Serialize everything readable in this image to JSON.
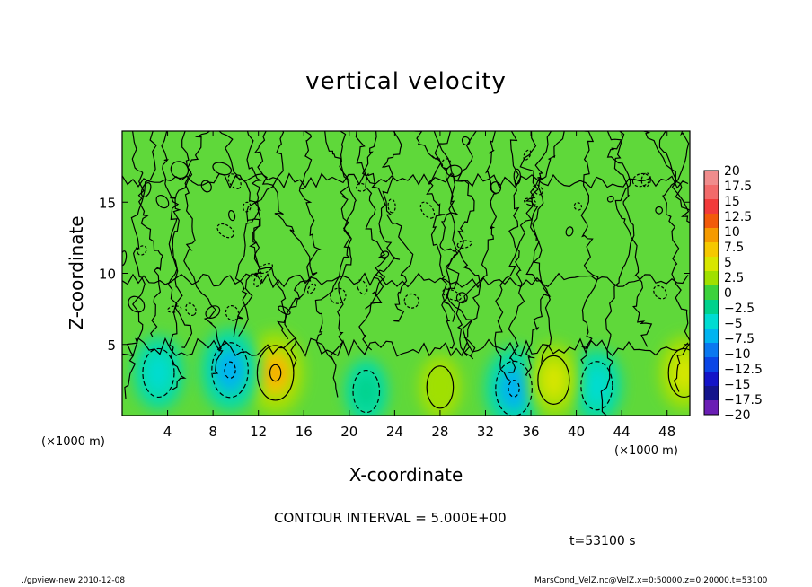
{
  "chart_data": {
    "type": "heatmap",
    "title": "vertical velocity",
    "xlabel": "X-coordinate",
    "ylabel": "Z-coordinate",
    "x_unit": "(×1000 m)",
    "y_unit": "(×1000 m)",
    "xlim": [
      0,
      50
    ],
    "ylim": [
      0,
      20
    ],
    "x_ticks": [
      4,
      8,
      12,
      16,
      20,
      24,
      28,
      32,
      36,
      40,
      44,
      48
    ],
    "y_ticks": [
      5,
      10,
      15
    ],
    "colorbar": {
      "levels": [
        "20",
        "17.5",
        "15",
        "12.5",
        "10",
        "7.5",
        "5",
        "2.5",
        "0",
        "−2.5",
        "−5",
        "−7.5",
        "−10",
        "−12.5",
        "−15",
        "−17.5",
        "−20"
      ],
      "colors": [
        "#f08c8c",
        "#f26a6a",
        "#f23a3a",
        "#f25a0a",
        "#f59a00",
        "#f5c800",
        "#d8e600",
        "#a0e000",
        "#3cd23c",
        "#00d28c",
        "#00dcd2",
        "#00b4f0",
        "#0a78f0",
        "#0a46e6",
        "#1414c8",
        "#14148c",
        "#6a1eb4"
      ]
    },
    "features": [
      {
        "x": 13.5,
        "z": 3.0,
        "sign": "positive",
        "peak": 7.5
      },
      {
        "x": 9.5,
        "z": 3.2,
        "sign": "negative",
        "peak": -7.5
      },
      {
        "x": 34.5,
        "z": 1.9,
        "sign": "negative",
        "peak": -7.5
      },
      {
        "x": 41.8,
        "z": 2.1,
        "sign": "negative",
        "peak": -5
      },
      {
        "x": 38.0,
        "z": 2.5,
        "sign": "positive",
        "peak": 5
      },
      {
        "x": 49.5,
        "z": 3.0,
        "sign": "positive",
        "peak": 5
      },
      {
        "x": 3.2,
        "z": 3.0,
        "sign": "negative",
        "peak": -5
      },
      {
        "x": 21.5,
        "z": 1.7,
        "sign": "negative",
        "peak": -2.5
      },
      {
        "x": 28.0,
        "z": 2.0,
        "sign": "positive",
        "peak": 2.5
      }
    ],
    "contour_interval": "CONTOUR INTERVAL = 5.000E+00",
    "time": "t=53100 s"
  },
  "footer": {
    "left": "./gpview-new  2010-12-08",
    "right": "MarsCond_VelZ.nc@VelZ,x=0:50000,z=0:20000,t=53100"
  }
}
